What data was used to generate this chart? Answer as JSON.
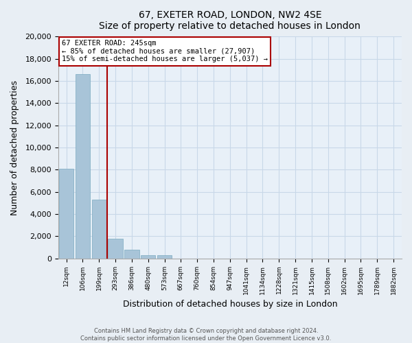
{
  "title": "67, EXETER ROAD, LONDON, NW2 4SE",
  "subtitle": "Size of property relative to detached houses in London",
  "xlabel": "Distribution of detached houses by size in London",
  "ylabel": "Number of detached properties",
  "bar_labels": [
    "12sqm",
    "106sqm",
    "199sqm",
    "293sqm",
    "386sqm",
    "480sqm",
    "573sqm",
    "667sqm",
    "760sqm",
    "854sqm",
    "947sqm",
    "1041sqm",
    "1134sqm",
    "1228sqm",
    "1321sqm",
    "1415sqm",
    "1508sqm",
    "1602sqm",
    "1695sqm",
    "1789sqm",
    "1882sqm"
  ],
  "bar_values": [
    8100,
    16600,
    5300,
    1800,
    800,
    300,
    300,
    0,
    0,
    0,
    0,
    0,
    0,
    0,
    0,
    0,
    0,
    0,
    0,
    0,
    0
  ],
  "bar_color": "#a8c4d8",
  "property_line_x": 2.5,
  "property_line_color": "#aa0000",
  "annotation_line1": "67 EXETER ROAD: 245sqm",
  "annotation_line2": "← 85% of detached houses are smaller (27,907)",
  "annotation_line3": "15% of semi-detached houses are larger (5,037) →",
  "annotation_box_color": "#ffffff",
  "annotation_box_edge_color": "#aa0000",
  "ylim": [
    0,
    20000
  ],
  "yticks": [
    0,
    2000,
    4000,
    6000,
    8000,
    10000,
    12000,
    14000,
    16000,
    18000,
    20000
  ],
  "footer_line1": "Contains HM Land Registry data © Crown copyright and database right 2024.",
  "footer_line2": "Contains public sector information licensed under the Open Government Licence v3.0.",
  "bg_color": "#e8eef4",
  "plot_bg_color": "#e8f0f8",
  "grid_color": "#c8d8e8"
}
